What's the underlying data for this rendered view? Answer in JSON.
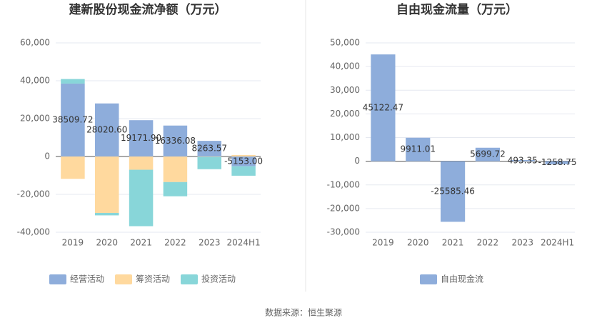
{
  "chart_data": [
    {
      "type": "stacked_bar",
      "title": "建新股份现金流净额（万元）",
      "categories": [
        "2019",
        "2020",
        "2021",
        "2022",
        "2023",
        "2024H1"
      ],
      "series": [
        {
          "name": "经营活动",
          "color": "#8eaddb",
          "values": [
            38509.72,
            28020.6,
            19171.9,
            16336.08,
            8263.57,
            -5153.0
          ],
          "value_labels": [
            "38509.72",
            "28020.60",
            "19171.90",
            "16336.08",
            "8263.57",
            "-5153.00"
          ]
        },
        {
          "name": "筹资活动",
          "color": "#ffd99e",
          "values": [
            -11800,
            -29800,
            -7000,
            -13500,
            -200,
            800
          ]
        },
        {
          "name": "投资活动",
          "color": "#88d6d9",
          "values": [
            2400,
            -1300,
            -29800,
            -7500,
            -6500,
            -5000
          ]
        }
      ],
      "ylim": [
        -40000,
        60000
      ],
      "yticks": [
        {
          "value": -40000,
          "label": "-40,000"
        },
        {
          "value": -20000,
          "label": "-20,000"
        },
        0,
        {
          "value": 20000,
          "label": "20,000"
        },
        {
          "value": 40000,
          "label": "40,000"
        },
        {
          "value": 60000,
          "label": "60,000"
        }
      ],
      "grid": true
    },
    {
      "type": "bar",
      "title": "自由现金流量（万元）",
      "categories": [
        "2019",
        "2020",
        "2021",
        "2022",
        "2023",
        "2024H1"
      ],
      "series": [
        {
          "name": "自由现金流",
          "color": "#8eaddb",
          "values": [
            45122.47,
            9911.01,
            -25585.46,
            5699.72,
            493.35,
            -1258.75
          ]
        }
      ],
      "ylim": [
        -30000,
        50000
      ],
      "yticks": [
        {
          "value": -30000,
          "label": "-30,000"
        },
        {
          "value": -20000,
          "label": "-20,000"
        },
        {
          "value": -10000,
          "label": "-10,000"
        },
        0,
        {
          "value": 10000,
          "label": "10,000"
        },
        {
          "value": 20000,
          "label": "20,000"
        },
        {
          "value": 30000,
          "label": "30,000"
        },
        {
          "value": 40000,
          "label": "40,000"
        },
        {
          "value": 50000,
          "label": "50,000"
        }
      ],
      "grid": true
    }
  ],
  "source": "数据来源：恒生聚源"
}
